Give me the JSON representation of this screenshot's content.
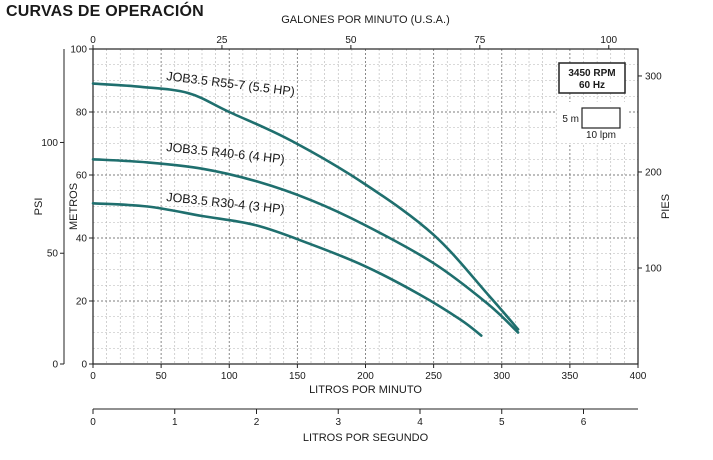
{
  "page_title": "CURVAS DE OPERACIÓN",
  "chart_data": {
    "type": "line",
    "title": "CURVAS DE OPERACIÓN",
    "xlabel": "LITROS POR MINUTO",
    "xlim": [
      0,
      400
    ],
    "x_ticks": [
      0,
      50,
      100,
      150,
      200,
      250,
      300,
      350,
      400
    ],
    "ylabel": "METROS",
    "ylim": [
      0,
      100
    ],
    "y_ticks": [
      0,
      20,
      40,
      60,
      80,
      100
    ],
    "grid": true,
    "secondary_axes": {
      "top": {
        "label": "GALONES POR MINUTO (U.S.A.)",
        "ticks": [
          0,
          25,
          50,
          75,
          100
        ],
        "per_primary_unit": 0.26417
      },
      "left_outer": {
        "label": "PSI",
        "ticks": [
          0,
          50,
          100
        ],
        "per_primary_unit": 1.4219
      },
      "right": {
        "label": "PIES",
        "ticks": [
          100,
          200,
          300
        ],
        "per_primary_unit": 3.2808
      },
      "bottom": {
        "label": "LITROS POR SEGUNDO",
        "ticks": [
          0,
          1,
          2,
          3,
          4,
          5,
          6
        ],
        "per_primary_unit": 0.016667
      }
    },
    "legend_box": {
      "speed": "3450 RPM",
      "frequency": "60 Hz",
      "scale_height": "5 m",
      "scale_width": "10 lpm"
    },
    "series": [
      {
        "name": "JOB3.5 R55-7 (5.5 HP)",
        "x": [
          0,
          35,
          70,
          100,
          145,
          200,
          250,
          290,
          312
        ],
        "y": [
          89,
          88,
          86,
          80,
          71,
          57,
          41,
          22,
          11
        ]
      },
      {
        "name": "JOB3.5 R40-6 (4 HP)",
        "x": [
          0,
          40,
          80,
          120,
          160,
          200,
          250,
          290,
          312
        ],
        "y": [
          65,
          64,
          62,
          58,
          52,
          44,
          32,
          19,
          10
        ]
      },
      {
        "name": "JOB3.5 R30-4 (3 HP)",
        "x": [
          0,
          40,
          80,
          120,
          160,
          200,
          240,
          270,
          285
        ],
        "y": [
          51,
          50,
          47,
          44,
          38,
          31,
          22,
          14,
          9
        ]
      }
    ]
  }
}
